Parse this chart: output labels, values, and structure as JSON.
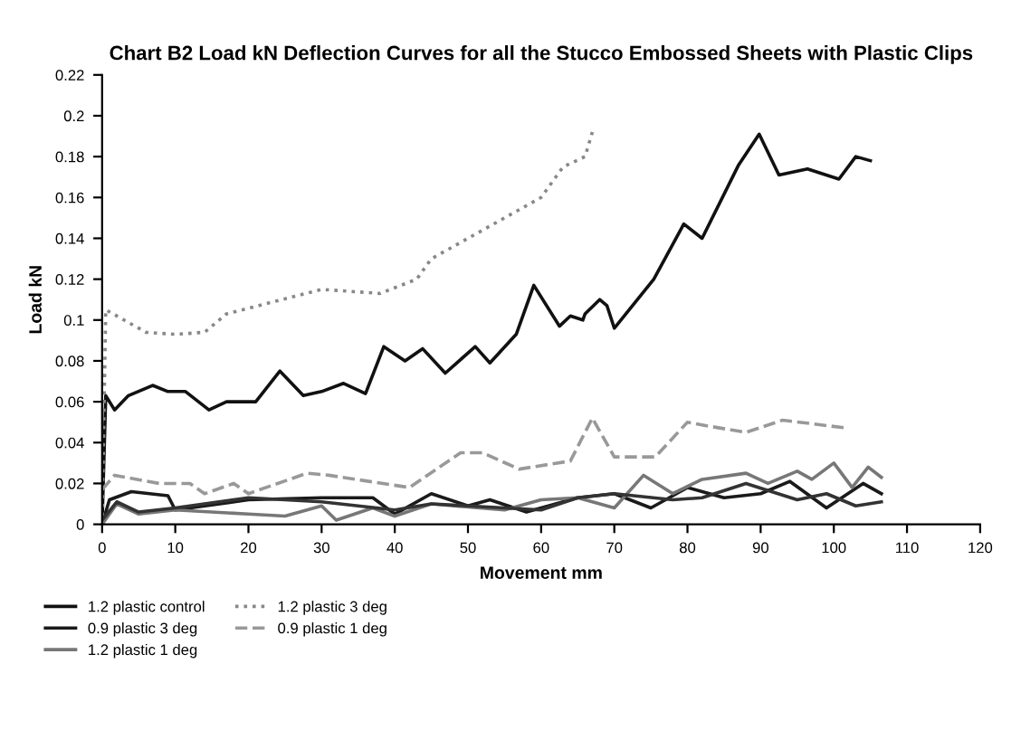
{
  "chart_data": {
    "type": "line",
    "title": "Chart B2 Load kN Deflection Curves for all the Stucco Embossed Sheets with Plastic Clips",
    "xlabel": "Movement mm",
    "ylabel": "Load kN",
    "xlim": [
      0,
      120
    ],
    "xticks": [
      0,
      10,
      20,
      30,
      40,
      50,
      60,
      70,
      80,
      90,
      100,
      110,
      120
    ],
    "ylim": [
      0,
      0.22
    ],
    "yticks": [
      0,
      0.02,
      0.04,
      0.06,
      0.08,
      0.1,
      0.12,
      0.14,
      0.16,
      0.18,
      0.2,
      0.22
    ],
    "grid": false,
    "legend": "bottom",
    "marker": "none",
    "series": [
      {
        "name": "1.2 plastic control",
        "color": "#111111",
        "line_style": "solid",
        "x": [
          0,
          0.5,
          1.7,
          3.6,
          6.9,
          9,
          11.4,
          14.6,
          17,
          21,
          24.3,
          27.5,
          30,
          33,
          36,
          38.5,
          41.4,
          43.8,
          46.9,
          51,
          53,
          56.6,
          59,
          62.5,
          64,
          65.7,
          66,
          68,
          69,
          70,
          75.4,
          79.5,
          82,
          87,
          89.8,
          92.5,
          96.4,
          100.7,
          103,
          105
        ],
        "values": [
          0.0,
          0.063,
          0.056,
          0.063,
          0.068,
          0.065,
          0.065,
          0.056,
          0.06,
          0.06,
          0.075,
          0.063,
          0.065,
          0.069,
          0.064,
          0.087,
          0.08,
          0.086,
          0.074,
          0.087,
          0.079,
          0.093,
          0.117,
          0.097,
          0.102,
          0.1,
          0.103,
          0.11,
          0.107,
          0.096,
          0.12,
          0.147,
          0.14,
          0.176,
          0.191,
          0.171,
          0.174,
          0.169,
          0.18,
          0.178
        ]
      },
      {
        "name": "0.9 plastic 3 deg",
        "color": "#1a1a1a",
        "line_style": "solid",
        "x": [
          0,
          1,
          4,
          9,
          10,
          20,
          30,
          37,
          40,
          45,
          50,
          53,
          58,
          65,
          70,
          75,
          80,
          85,
          90,
          94,
          99,
          104,
          106.5
        ],
        "values": [
          0.0,
          0.012,
          0.016,
          0.014,
          0.007,
          0.012,
          0.013,
          0.013,
          0.005,
          0.015,
          0.009,
          0.012,
          0.006,
          0.013,
          0.015,
          0.008,
          0.018,
          0.013,
          0.015,
          0.021,
          0.008,
          0.02,
          0.015
        ]
      },
      {
        "name": "1.2 plastic 1 deg",
        "color": "#777777",
        "line_style": "solid",
        "x": [
          0,
          2,
          5,
          10,
          20,
          25,
          30,
          32,
          37,
          40,
          45,
          55,
          60,
          65,
          70,
          74,
          78,
          82,
          88,
          91,
          95,
          97,
          100,
          102.5,
          104.7,
          106.5
        ],
        "values": [
          0.0,
          0.01,
          0.005,
          0.007,
          0.005,
          0.004,
          0.009,
          0.002,
          0.008,
          0.004,
          0.01,
          0.007,
          0.012,
          0.013,
          0.008,
          0.024,
          0.015,
          0.022,
          0.025,
          0.02,
          0.026,
          0.022,
          0.03,
          0.018,
          0.028,
          0.023
        ]
      },
      {
        "color": "#333333",
        "line_style": "solid",
        "x": [
          0,
          2,
          5,
          10,
          20,
          30,
          40,
          45,
          55,
          60,
          65,
          70,
          78,
          82,
          88,
          95,
          99,
          103,
          106.5
        ],
        "values": [
          0.002,
          0.011,
          0.006,
          0.008,
          0.013,
          0.011,
          0.007,
          0.01,
          0.008,
          0.007,
          0.013,
          0.015,
          0.012,
          0.013,
          0.02,
          0.012,
          0.015,
          0.009,
          0.011
        ]
      },
      {
        "name": "1.2 plastic 3 deg",
        "color": "#888888",
        "line_style": "dotted",
        "x": [
          0,
          0.5,
          3,
          6,
          10,
          14,
          17,
          30,
          38,
          43,
          45,
          55,
          60,
          63,
          66,
          67
        ],
        "values": [
          0.0,
          0.105,
          0.1,
          0.094,
          0.093,
          0.094,
          0.103,
          0.115,
          0.113,
          0.12,
          0.13,
          0.15,
          0.16,
          0.175,
          0.18,
          0.192
        ]
      },
      {
        "name": "0.9 plastic 1 deg",
        "color": "#999999",
        "line_style": "dashed",
        "x": [
          0,
          1.7,
          7.8,
          12,
          14,
          18,
          20,
          28,
          31,
          42,
          49,
          52,
          57,
          64,
          67,
          70,
          75.6,
          80,
          83,
          88,
          93,
          102
        ],
        "values": [
          0.017,
          0.024,
          0.02,
          0.02,
          0.015,
          0.02,
          0.015,
          0.025,
          0.024,
          0.018,
          0.035,
          0.035,
          0.027,
          0.031,
          0.052,
          0.033,
          0.033,
          0.05,
          0.048,
          0.045,
          0.051,
          0.047
        ]
      }
    ]
  }
}
